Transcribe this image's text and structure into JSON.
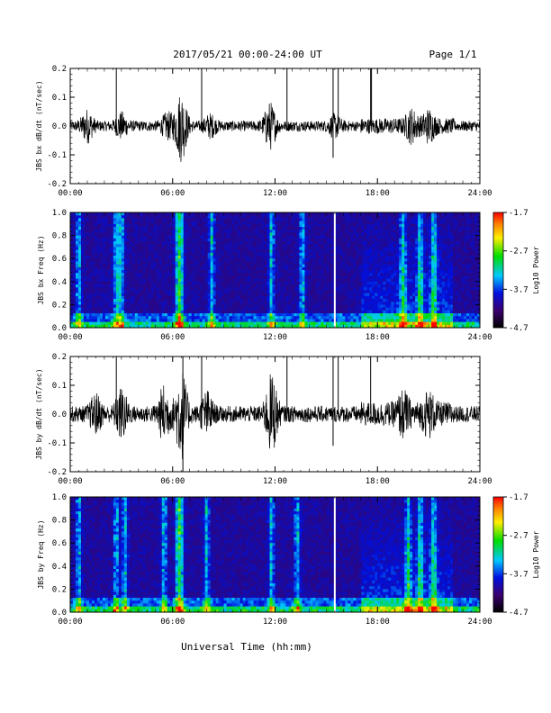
{
  "header": {
    "date_range": "2017/05/21  00:00-24:00 UT",
    "page": "Page 1/1"
  },
  "xaxis": {
    "title": "Universal Time (hh:mm)",
    "ticks": [
      "00:00",
      "06:00",
      "12:00",
      "18:00",
      "24:00"
    ],
    "range_hours": [
      0,
      24
    ]
  },
  "colorbar": {
    "ticks": [
      "-1.7",
      "-2.7",
      "-3.7",
      "-4.7"
    ],
    "range": [
      -4.7,
      -1.7
    ],
    "colors": [
      "#000000",
      "#3a0070",
      "#0010e0",
      "#00c8ff",
      "#00dd00",
      "#ffee00",
      "#ff8000",
      "#ff0000"
    ]
  },
  "chart_data": [
    {
      "type": "line",
      "ylabel": "JBS bx dB/dt (nT/sec)",
      "ylim": [
        -0.2,
        0.2
      ],
      "yticks": [
        "0.2",
        "0.1",
        "0.0",
        "-0.1",
        "-0.2"
      ],
      "spikes": [
        {
          "t": 2.7,
          "top": 0.2,
          "bottom": 0.0
        },
        {
          "t": 7.7,
          "top": 0.2,
          "bottom": 0.0
        },
        {
          "t": 12.7,
          "top": 0.2,
          "bottom": 0.0
        },
        {
          "t": 15.4,
          "top": 0.2,
          "bottom": -0.11
        },
        {
          "t": 15.7,
          "top": 0.2,
          "bottom": 0.0
        },
        {
          "t": 17.6,
          "top": 0.2,
          "bottom": 0.0
        },
        {
          "t": 17.65,
          "top": 0.2,
          "bottom": 0.0
        }
      ],
      "bursts": [
        {
          "t": 1.0,
          "amp": 0.045
        },
        {
          "t": 3.0,
          "amp": 0.035
        },
        {
          "t": 5.7,
          "amp": 0.035
        },
        {
          "t": 6.5,
          "amp": 0.11
        },
        {
          "t": 8.2,
          "amp": 0.03
        },
        {
          "t": 11.7,
          "amp": 0.07
        },
        {
          "t": 15.5,
          "amp": 0.03
        },
        {
          "t": 20.0,
          "amp": 0.04
        },
        {
          "t": 21.0,
          "amp": 0.04
        }
      ],
      "base_amp": 0.018
    },
    {
      "type": "heatmap",
      "ylabel": "JBS bx Freq (Hz)",
      "ylim": [
        0.0,
        1.0
      ],
      "yticks": [
        "1.0",
        "0.8",
        "0.6",
        "0.4",
        "0.2",
        "0.0"
      ],
      "colorbar_label": "Log10 Power",
      "gap_hours": 15.5,
      "bright_bands_hours": [
        0.5,
        2.7,
        3.0,
        6.3,
        6.5,
        8.3,
        11.8,
        13.6,
        19.5,
        20.5,
        21.3
      ]
    },
    {
      "type": "line",
      "ylabel": "JBS by dB/dt (nT/sec)",
      "ylim": [
        -0.2,
        0.2
      ],
      "yticks": [
        "0.2",
        "0.1",
        "0.0",
        "-0.1",
        "-0.2"
      ],
      "spikes": [
        {
          "t": 2.7,
          "top": 0.2,
          "bottom": 0.0
        },
        {
          "t": 6.6,
          "top": 0.2,
          "bottom": -0.2
        },
        {
          "t": 7.7,
          "top": 0.2,
          "bottom": 0.0
        },
        {
          "t": 12.7,
          "top": 0.2,
          "bottom": 0.0
        },
        {
          "t": 15.4,
          "top": 0.2,
          "bottom": -0.11
        },
        {
          "t": 15.7,
          "top": 0.2,
          "bottom": 0.0
        },
        {
          "t": 17.6,
          "top": 0.2,
          "bottom": 0.0
        }
      ],
      "bursts": [
        {
          "t": 1.5,
          "amp": 0.05
        },
        {
          "t": 3.0,
          "amp": 0.07
        },
        {
          "t": 5.5,
          "amp": 0.08
        },
        {
          "t": 6.5,
          "amp": 0.14
        },
        {
          "t": 8.0,
          "amp": 0.06
        },
        {
          "t": 11.8,
          "amp": 0.12
        },
        {
          "t": 19.5,
          "amp": 0.05
        },
        {
          "t": 21.0,
          "amp": 0.05
        }
      ],
      "base_amp": 0.028
    },
    {
      "type": "heatmap",
      "ylabel": "JBS by Freq (Hz)",
      "ylim": [
        0.0,
        1.0
      ],
      "yticks": [
        "1.0",
        "0.8",
        "0.6",
        "0.4",
        "0.2",
        "0.0"
      ],
      "colorbar_label": "Log10 Power",
      "gap_hours": 15.5,
      "bright_bands_hours": [
        0.5,
        2.7,
        3.2,
        5.5,
        6.3,
        6.5,
        8.0,
        11.8,
        13.3,
        19.8,
        20.5,
        21.3
      ]
    }
  ]
}
